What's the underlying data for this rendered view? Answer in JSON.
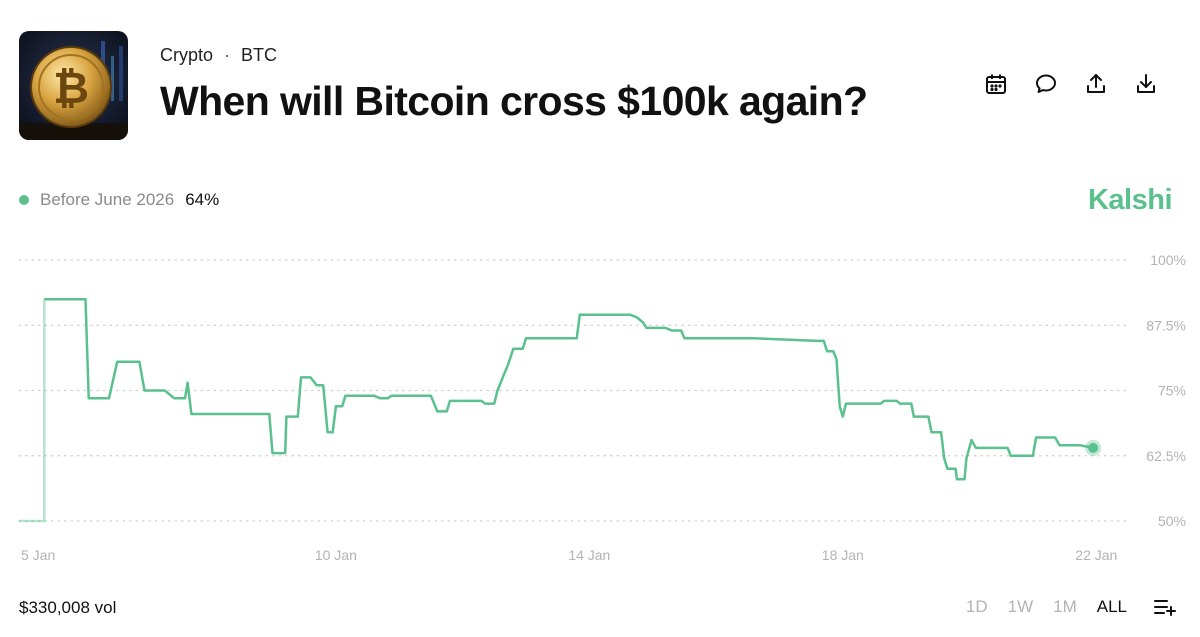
{
  "header": {
    "category": "Crypto",
    "separator": "·",
    "ticker": "BTC",
    "title": "When will Bitcoin cross $100k again?"
  },
  "thumbnail": {
    "icon": "bitcoin-coin-image"
  },
  "actions": [
    {
      "icon": "calendar-icon"
    },
    {
      "icon": "comment-icon"
    },
    {
      "icon": "share-icon"
    },
    {
      "icon": "download-icon"
    }
  ],
  "legend": {
    "name": "Before June 2026",
    "value": "64%",
    "color": "#5ac18e"
  },
  "brand": {
    "name": "Kalshi",
    "color": "#5ac18e"
  },
  "footer": {
    "volume": "$330,008 vol",
    "ranges": [
      "1D",
      "1W",
      "1M",
      "ALL"
    ],
    "active_range": "ALL"
  },
  "chart_data": {
    "type": "line",
    "series": [
      {
        "name": "Before June 2026",
        "color": "#5ac18e",
        "points": [
          [
            5.0,
            50
          ],
          [
            5.4,
            50
          ],
          [
            5.4,
            92.5
          ],
          [
            6.05,
            92.5
          ],
          [
            6.1,
            73.5
          ],
          [
            6.42,
            73.5
          ],
          [
            6.55,
            80.5
          ],
          [
            6.9,
            80.5
          ],
          [
            6.98,
            75
          ],
          [
            7.3,
            75
          ],
          [
            7.45,
            73.5
          ],
          [
            7.62,
            73.5
          ],
          [
            7.66,
            76.5
          ],
          [
            7.72,
            70.5
          ],
          [
            8.95,
            70.5
          ],
          [
            9.0,
            63
          ],
          [
            9.2,
            63
          ],
          [
            9.22,
            70
          ],
          [
            9.4,
            70
          ],
          [
            9.45,
            77.5
          ],
          [
            9.6,
            77.5
          ],
          [
            9.7,
            76
          ],
          [
            9.8,
            76
          ],
          [
            9.87,
            67
          ],
          [
            9.95,
            67
          ],
          [
            10.0,
            72
          ],
          [
            10.1,
            72
          ],
          [
            10.15,
            74
          ],
          [
            10.6,
            74
          ],
          [
            10.7,
            73.5
          ],
          [
            10.82,
            73.5
          ],
          [
            10.88,
            74
          ],
          [
            11.05,
            74
          ],
          [
            11.5,
            74
          ],
          [
            11.6,
            71
          ],
          [
            11.75,
            71
          ],
          [
            11.8,
            73
          ],
          [
            12.3,
            73
          ],
          [
            12.35,
            72.5
          ],
          [
            12.5,
            72.5
          ],
          [
            12.55,
            75
          ],
          [
            12.65,
            78
          ],
          [
            12.72,
            80
          ],
          [
            12.8,
            83
          ],
          [
            12.95,
            83
          ],
          [
            13.0,
            85
          ],
          [
            13.5,
            85
          ],
          [
            13.8,
            85
          ],
          [
            13.85,
            89.5
          ],
          [
            14.65,
            89.5
          ],
          [
            14.75,
            89
          ],
          [
            14.85,
            88
          ],
          [
            14.9,
            87
          ],
          [
            15.2,
            87
          ],
          [
            15.3,
            86.5
          ],
          [
            15.45,
            86.5
          ],
          [
            15.5,
            85
          ],
          [
            16.6,
            85
          ],
          [
            17.6,
            84.5
          ],
          [
            17.7,
            84.5
          ],
          [
            17.75,
            82.5
          ],
          [
            17.85,
            82.5
          ],
          [
            17.9,
            81
          ],
          [
            17.95,
            72
          ],
          [
            18.0,
            70
          ],
          [
            18.05,
            72.5
          ],
          [
            18.6,
            72.5
          ],
          [
            18.65,
            73
          ],
          [
            18.85,
            73
          ],
          [
            18.9,
            72.5
          ],
          [
            19.08,
            72.5
          ],
          [
            19.12,
            70
          ],
          [
            19.35,
            70
          ],
          [
            19.4,
            67
          ],
          [
            19.55,
            67
          ],
          [
            19.6,
            62
          ],
          [
            19.65,
            60
          ],
          [
            19.78,
            60
          ],
          [
            19.8,
            58
          ],
          [
            19.92,
            58
          ],
          [
            19.95,
            62
          ],
          [
            20.03,
            65.5
          ],
          [
            20.1,
            64
          ],
          [
            20.6,
            64
          ],
          [
            20.65,
            62.5
          ],
          [
            21.0,
            62.5
          ],
          [
            21.05,
            66
          ],
          [
            21.35,
            66
          ],
          [
            21.42,
            64.5
          ],
          [
            21.75,
            64.5
          ],
          [
            21.95,
            64
          ]
        ]
      }
    ],
    "x_range": [
      5.0,
      22.5
    ],
    "x_ticks": [
      {
        "value": 5.0,
        "label": "5 Jan"
      },
      {
        "value": 10.0,
        "label": "10 Jan"
      },
      {
        "value": 14.0,
        "label": "14 Jan"
      },
      {
        "value": 18.0,
        "label": "18 Jan"
      },
      {
        "value": 22.0,
        "label": "22 Jan"
      }
    ],
    "y_ticks": [
      {
        "value": 100,
        "label": "100%"
      },
      {
        "value": 87.5,
        "label": "87.5%"
      },
      {
        "value": 75,
        "label": "75%"
      },
      {
        "value": 62.5,
        "label": "62.5%"
      },
      {
        "value": 50,
        "label": "50%"
      }
    ],
    "ylim": [
      50,
      100
    ],
    "grid": true,
    "gridlines": "dotted",
    "legend_position": "top-left"
  }
}
